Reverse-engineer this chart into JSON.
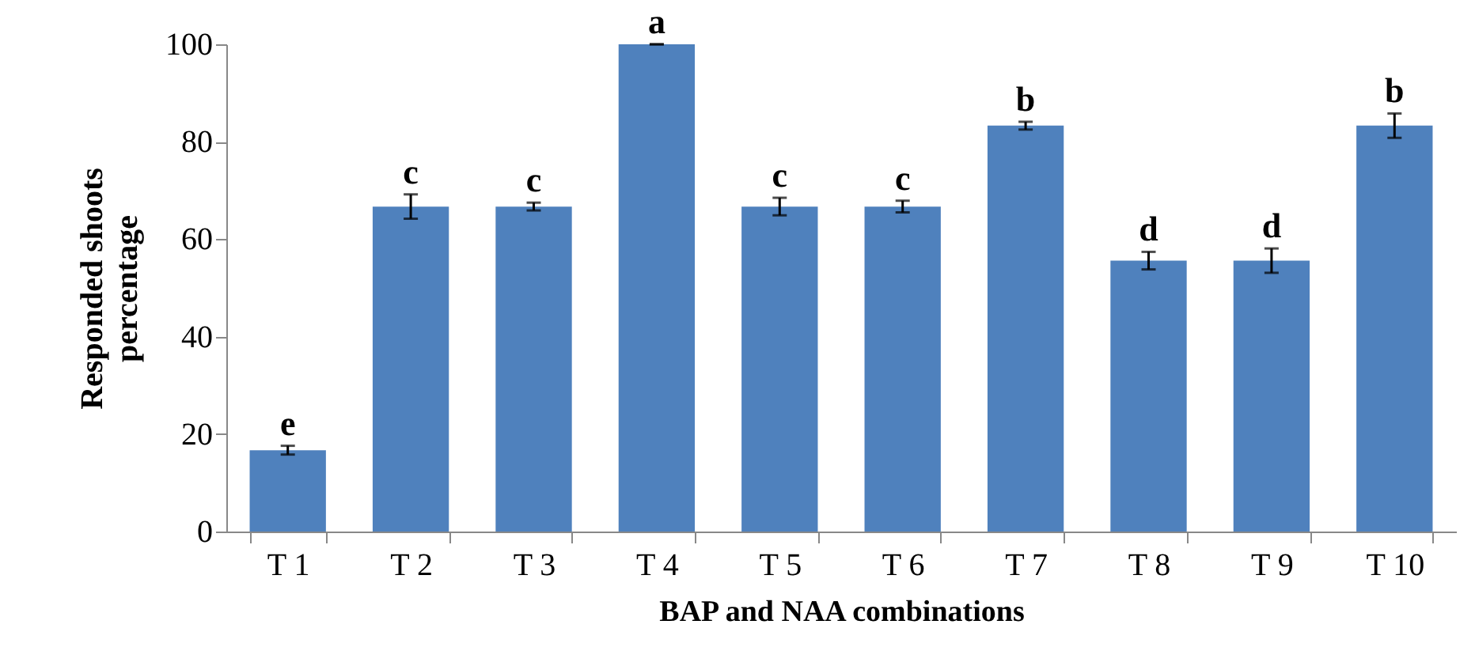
{
  "chart_data": {
    "type": "bar",
    "xlabel": "BAP and NAA combinations",
    "ylabel": "Responded shoots percentage",
    "categories": [
      "T 1",
      "T 2",
      "T 3",
      "T 4",
      "T 5",
      "T 6",
      "T 7",
      "T 8",
      "T 9",
      "T 10"
    ],
    "values": [
      16.7,
      66.7,
      66.7,
      100,
      66.7,
      66.7,
      83.3,
      55.6,
      55.6,
      83.3
    ],
    "errors": [
      0.9,
      2.5,
      0.8,
      0,
      1.8,
      1.2,
      0.8,
      1.8,
      2.5,
      2.5
    ],
    "color": "#4f81bd",
    "ylim": [
      0,
      100
    ],
    "yticks": [
      0,
      20,
      40,
      60,
      80,
      100
    ],
    "grid": false,
    "annotations": [
      {
        "text": "e",
        "x": "T 1",
        "y": 17.6
      },
      {
        "text": "c",
        "x": "T 2",
        "y": 69.2
      },
      {
        "text": "c",
        "x": "T 3",
        "y": 67.5
      },
      {
        "text": "a",
        "x": "T 4",
        "y": 100
      },
      {
        "text": "c",
        "x": "T 5",
        "y": 68.5
      },
      {
        "text": "c",
        "x": "T 6",
        "y": 67.9
      },
      {
        "text": "b",
        "x": "T 7",
        "y": 84.1
      },
      {
        "text": "d",
        "x": "T 8",
        "y": 57.4
      },
      {
        "text": "d",
        "x": "T 9",
        "y": 58.1
      },
      {
        "text": "b",
        "x": "T 10",
        "y": 85.8
      }
    ]
  }
}
